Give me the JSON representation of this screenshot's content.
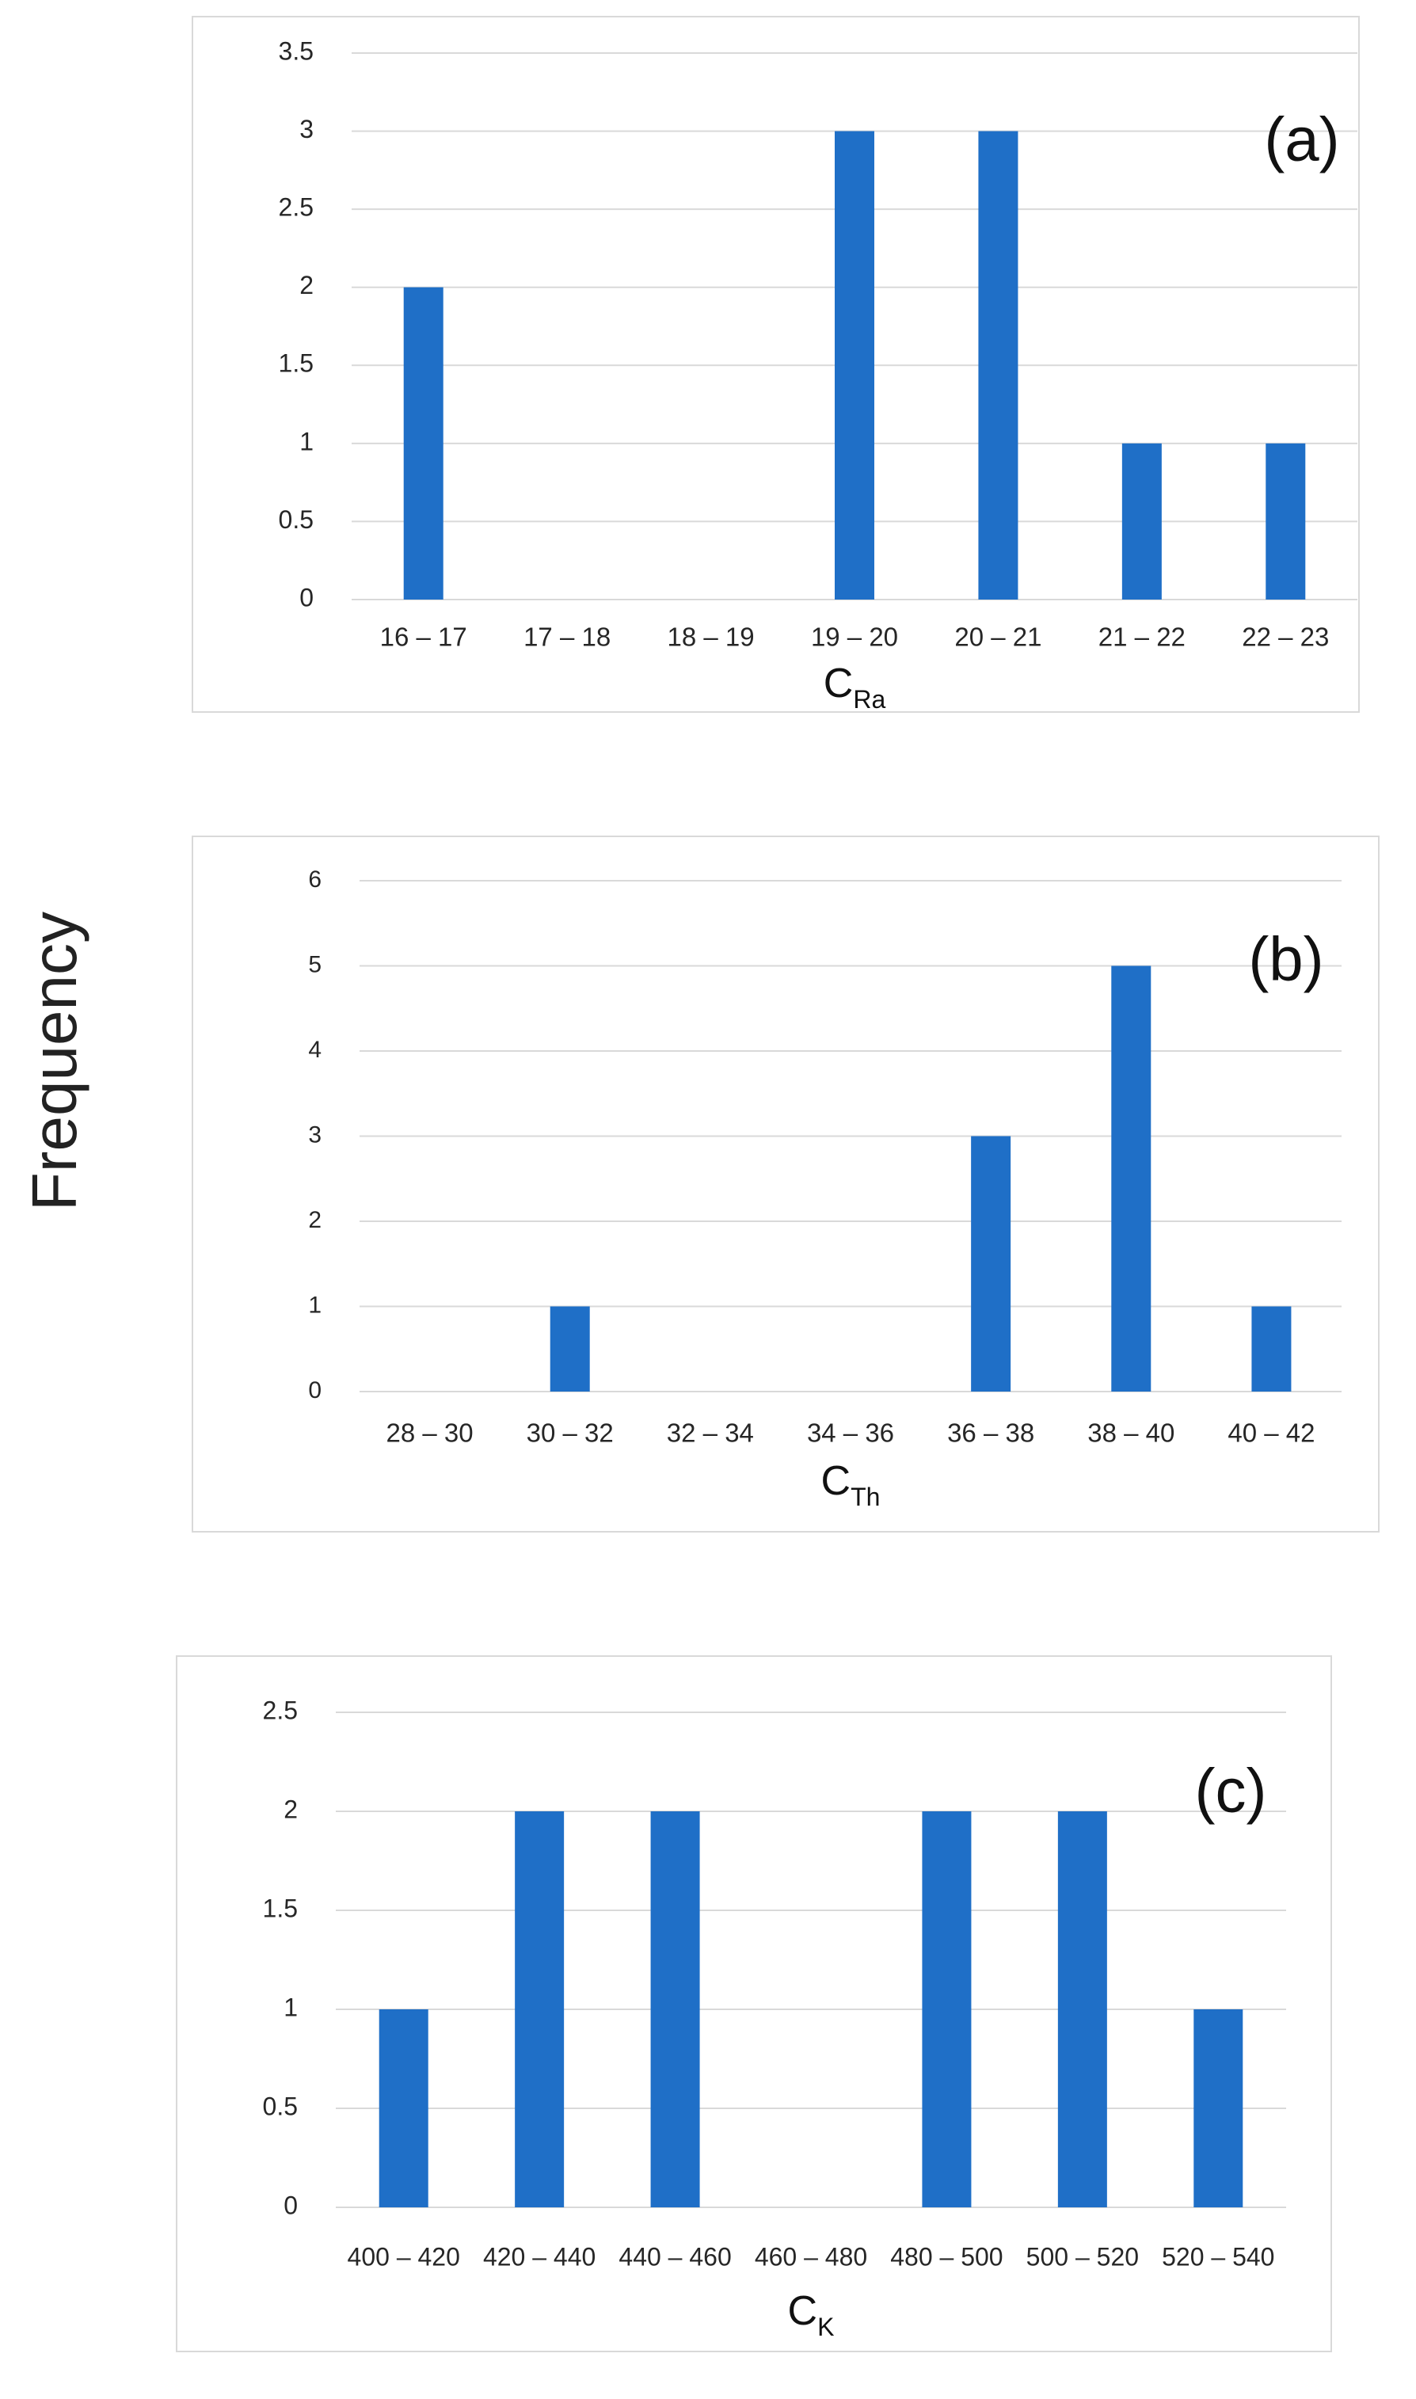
{
  "figure": {
    "ylabel": "Frequency"
  },
  "colors": {
    "bar": "#1F6FC7",
    "grid": "#d9d9d9",
    "text": "#262626"
  },
  "chart_data": [
    {
      "type": "bar",
      "panel_label": "(a)",
      "categories": [
        "16 – 17",
        "17 – 18",
        "18 – 19",
        "19 – 20",
        "20 – 21",
        "21 – 22",
        "22 – 23"
      ],
      "values": [
        2,
        0,
        0,
        3,
        3,
        1,
        1
      ],
      "yticks": [
        "0",
        "0.5",
        "1",
        "1.5",
        "2",
        "2.5",
        "3",
        "3.5"
      ],
      "ylim": [
        0,
        3.5
      ],
      "xlabel_main": "C",
      "xlabel_sub": "Ra"
    },
    {
      "type": "bar",
      "panel_label": "(b)",
      "categories": [
        "28 – 30",
        "30 – 32",
        "32 – 34",
        "34 – 36",
        "36 – 38",
        "38 – 40",
        "40 – 42"
      ],
      "values": [
        0,
        1,
        0,
        0,
        3,
        5,
        1
      ],
      "yticks": [
        "0",
        "1",
        "2",
        "3",
        "4",
        "5",
        "6"
      ],
      "ylim": [
        0,
        6
      ],
      "xlabel_main": "C",
      "xlabel_sub": "Th"
    },
    {
      "type": "bar",
      "panel_label": "(c)",
      "categories": [
        "400 – 420",
        "420 – 440",
        "440 – 460",
        "460 – 480",
        "480 – 500",
        "500 – 520",
        "520 – 540"
      ],
      "values": [
        1,
        2,
        2,
        0,
        2,
        2,
        1
      ],
      "yticks": [
        "0",
        "0.5",
        "1",
        "1.5",
        "2",
        "2.5"
      ],
      "ylim": [
        0,
        2.5
      ],
      "xlabel_main": "C",
      "xlabel_sub": "K"
    }
  ]
}
